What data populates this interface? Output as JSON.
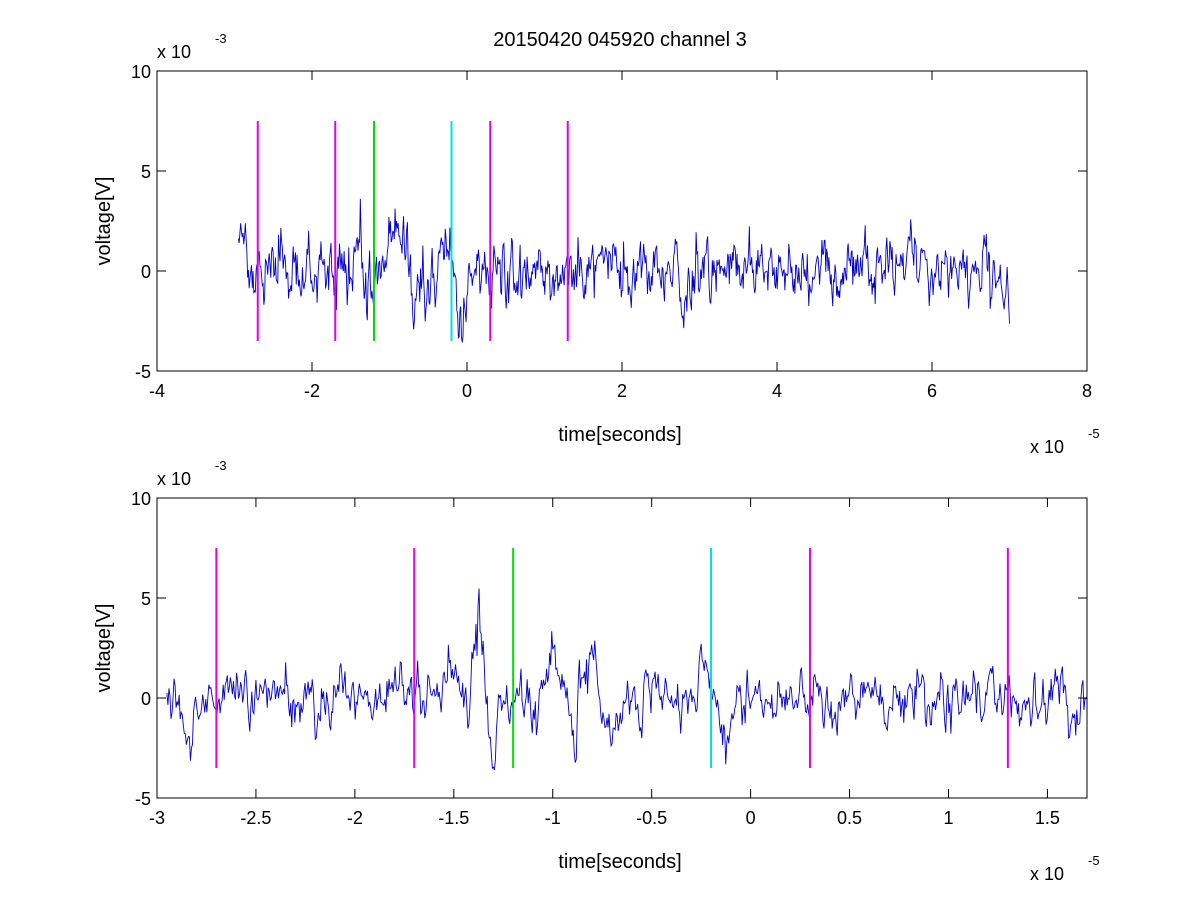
{
  "figure": {
    "title": "20150420 045920 channel 3"
  },
  "chart_data": [
    {
      "type": "line",
      "xlabel": "time[seconds]",
      "ylabel": "voltage[V]",
      "xlim": [
        -4e-05,
        8e-05
      ],
      "ylim": [
        -0.005,
        0.01
      ],
      "x_ticks": [
        -4e-05,
        -2e-05,
        0,
        2e-05,
        4e-05,
        6e-05,
        8e-05
      ],
      "x_tick_labels": [
        "-4",
        "-2",
        "0",
        "2",
        "4",
        "6",
        "8"
      ],
      "y_ticks": [
        -0.005,
        0,
        0.005,
        0.01
      ],
      "y_tick_labels": [
        "-5",
        "0",
        "5",
        "10"
      ],
      "x_multiplier": {
        "base": "x 10",
        "exp": "-5"
      },
      "y_multiplier": {
        "base": "x 10",
        "exp": "-3"
      },
      "grid": false,
      "series": [
        {
          "color": "#0000c8",
          "x_start": -2.95e-05,
          "x_end": 7e-05,
          "samples": 1000,
          "noise_seed": 7,
          "noise_std": 0.0007,
          "bursts": [
            {
              "center": -1.38e-05,
              "amp": 0.0062,
              "width": 8e-07
            },
            {
              "center": -1.42e-05,
              "amp": -0.0025,
              "width": 1.2e-06
            },
            {
              "center": -1.3e-05,
              "amp": -0.0028,
              "width": 1e-06
            },
            {
              "center": -1e-05,
              "amp": 0.0024,
              "width": 1e-06
            },
            {
              "center": -8e-06,
              "amp": 0.0028,
              "width": 1.2e-06
            },
            {
              "center": -7e-06,
              "amp": -0.0022,
              "width": 1.2e-06
            },
            {
              "center": -2e-06,
              "amp": 0.0018,
              "width": 1e-06
            },
            {
              "center": -1e-06,
              "amp": -0.0024,
              "width": 1e-06
            },
            {
              "center": 2.8e-05,
              "amp": -0.003,
              "width": 8e-07
            },
            {
              "center": 2.7e-05,
              "amp": 0.0022,
              "width": 1e-06
            },
            {
              "center": 5.7e-05,
              "amp": 0.002,
              "width": 1e-06
            },
            {
              "center": 7e-05,
              "amp": -0.0015,
              "width": 1e-06
            },
            {
              "center": -2.9e-05,
              "amp": 0.0014,
              "width": 6e-07
            }
          ]
        }
      ],
      "markers": [
        {
          "x": -2.7e-05,
          "color": "#e600e6"
        },
        {
          "x": -1.7e-05,
          "color": "#e600e6"
        },
        {
          "x": -1.2e-05,
          "color": "#00dd00"
        },
        {
          "x": -2e-06,
          "color": "#00e0e0"
        },
        {
          "x": 3e-06,
          "color": "#e600e6"
        },
        {
          "x": 1.3e-05,
          "color": "#e600e6"
        }
      ],
      "marker_range": [
        -0.0035,
        0.0075
      ]
    },
    {
      "type": "line",
      "xlabel": "time[seconds]",
      "ylabel": "voltage[V]",
      "xlim": [
        -3e-05,
        1.7e-05
      ],
      "ylim": [
        -0.005,
        0.01
      ],
      "x_ticks": [
        -3e-05,
        -2.5e-05,
        -2e-05,
        -1.5e-05,
        -1e-05,
        -5e-06,
        0,
        5e-06,
        1e-05,
        1.5e-05
      ],
      "x_tick_labels": [
        "-3",
        "-2.5",
        "-2",
        "-1.5",
        "-1",
        "-0.5",
        "0",
        "0.5",
        "1",
        "1.5"
      ],
      "y_ticks": [
        -0.005,
        0,
        0.005,
        0.01
      ],
      "y_tick_labels": [
        "-5",
        "0",
        "5",
        "10"
      ],
      "x_multiplier": {
        "base": "x 10",
        "exp": "-5"
      },
      "y_multiplier": {
        "base": "x 10",
        "exp": "-3"
      },
      "grid": false,
      "series": [
        {
          "color": "#0000c8",
          "x_start": -2.95e-05,
          "x_end": 1.7e-05,
          "samples": 900,
          "noise_seed": 11,
          "noise_std": 0.0006,
          "bursts": [
            {
              "center": -1.38e-05,
              "amp": 0.0062,
              "width": 4e-07
            },
            {
              "center": -1.42e-05,
              "amp": -0.0025,
              "width": 5e-07
            },
            {
              "center": -1.3e-05,
              "amp": -0.0028,
              "width": 4e-07
            },
            {
              "center": -1.5e-05,
              "amp": 0.0022,
              "width": 5e-07
            },
            {
              "center": -1e-05,
              "amp": 0.0024,
              "width": 5e-07
            },
            {
              "center": -8.2e-06,
              "amp": 0.0028,
              "width": 5e-07
            },
            {
              "center": -7e-06,
              "amp": -0.0024,
              "width": 5e-07
            },
            {
              "center": -9e-06,
              "amp": -0.0022,
              "width": 5e-07
            },
            {
              "center": -2.2e-06,
              "amp": 0.0016,
              "width": 4e-07
            },
            {
              "center": -1.3e-06,
              "amp": -0.0026,
              "width": 4e-07
            },
            {
              "center": -2.92e-05,
              "amp": 0.0014,
              "width": 3e-07
            },
            {
              "center": -2.85e-05,
              "amp": -0.002,
              "width": 4e-07
            },
            {
              "center": -1.8e-05,
              "amp": 0.0016,
              "width": 4e-07
            },
            {
              "center": 1.65e-05,
              "amp": -0.0018,
              "width": 4e-07
            }
          ]
        }
      ],
      "markers": [
        {
          "x": -2.7e-05,
          "color": "#e600e6"
        },
        {
          "x": -1.7e-05,
          "color": "#e600e6"
        },
        {
          "x": -1.2e-05,
          "color": "#00dd00"
        },
        {
          "x": -2e-06,
          "color": "#00e0e0"
        },
        {
          "x": 3e-06,
          "color": "#e600e6"
        },
        {
          "x": 1.3e-05,
          "color": "#e600e6"
        }
      ],
      "marker_range": [
        -0.0035,
        0.0075
      ]
    }
  ]
}
